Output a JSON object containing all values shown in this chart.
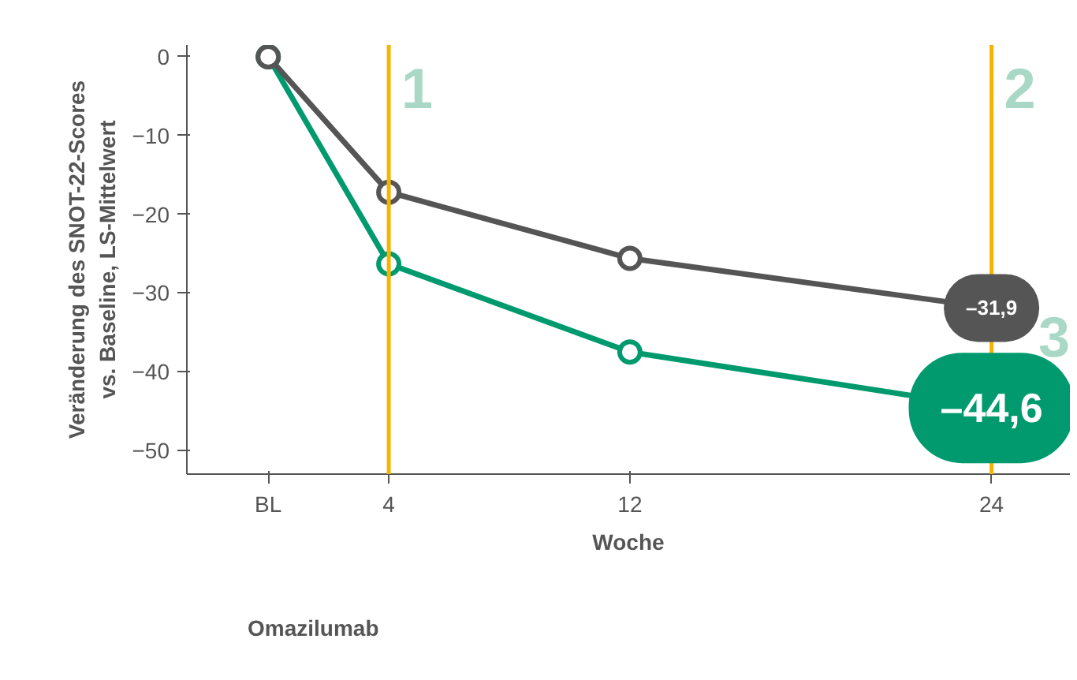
{
  "chart_data": {
    "type": "line",
    "xlabel": "Woche",
    "ylabel": "Veränderung des SNOT-22-Scores vs. Baseline, LS-Mittelwert",
    "x": [
      0,
      4,
      12,
      24
    ],
    "xlim": [
      -2.7,
      26.6
    ],
    "xticks": [
      {
        "value": 0,
        "label": "BL"
      },
      4,
      12,
      24
    ],
    "ylim": [
      -53,
      1.5
    ],
    "yticks": [
      0,
      -10,
      -20,
      -30,
      -40,
      -50
    ],
    "series": [
      {
        "color": "#009a6e",
        "values": [
          0,
          -26.3,
          -37.5,
          -44.6
        ],
        "value_labels": [
          null,
          null,
          null,
          "–44,6"
        ]
      },
      {
        "name": "Omazilumab",
        "color": "#555555",
        "values": [
          0,
          -17.2,
          -25.6,
          -31.9
        ],
        "value_labels": [
          null,
          null,
          null,
          "–31,9"
        ]
      }
    ],
    "ref_lines": [
      {
        "axis": "x",
        "value": 4,
        "color": "#f5b400"
      },
      {
        "axis": "x",
        "value": 24,
        "color": "#f5b400"
      }
    ],
    "annotations": [
      {
        "text": "1",
        "x": 4,
        "y": -4
      },
      {
        "text": "2",
        "x": 24,
        "y": -4
      },
      "3"
    ],
    "marker": "circle",
    "line_style": "solid",
    "grid": false,
    "legend": "bottom"
  }
}
